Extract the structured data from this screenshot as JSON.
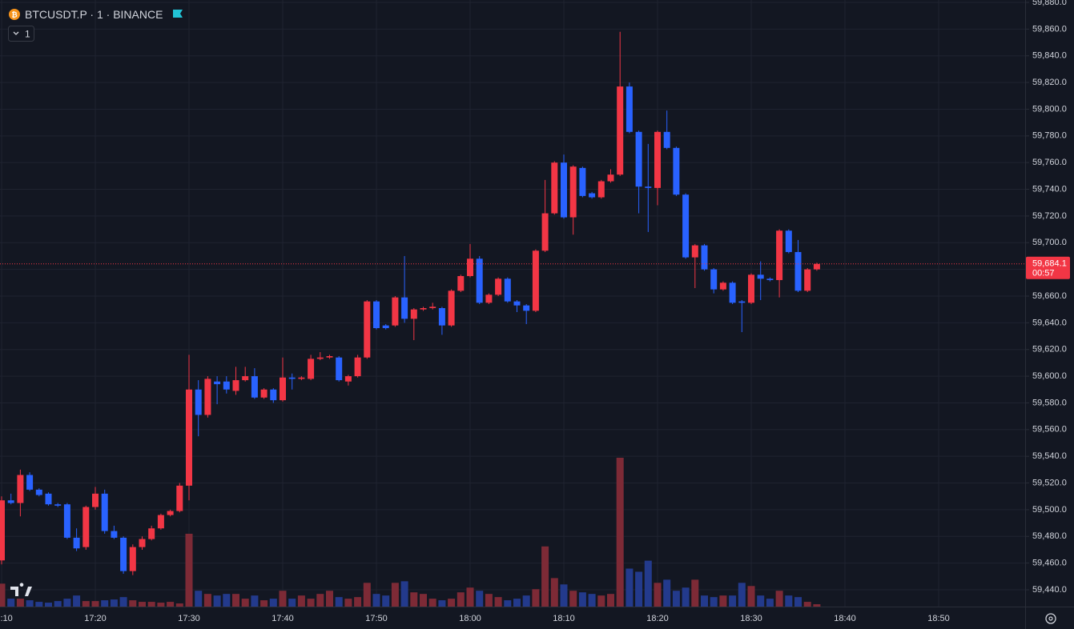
{
  "chart_data": {
    "type": "candlestick",
    "title": "BTCUSDT.P · 1 · BINANCE",
    "interval_badge": "1",
    "x": [
      "17:10",
      "17:11",
      "17:12",
      "17:13",
      "17:14",
      "17:15",
      "17:16",
      "17:17",
      "17:18",
      "17:19",
      "17:20",
      "17:21",
      "17:22",
      "17:23",
      "17:24",
      "17:25",
      "17:26",
      "17:27",
      "17:28",
      "17:29",
      "17:30",
      "17:31",
      "17:32",
      "17:33",
      "17:34",
      "17:35",
      "17:36",
      "17:37",
      "17:38",
      "17:39",
      "17:40",
      "17:41",
      "17:42",
      "17:43",
      "17:44",
      "17:45",
      "17:46",
      "17:47",
      "17:48",
      "17:49",
      "17:50",
      "17:51",
      "17:52",
      "17:53",
      "17:54",
      "17:55",
      "17:56",
      "17:57",
      "17:58",
      "17:59",
      "18:00",
      "18:01",
      "18:02",
      "18:03",
      "18:04",
      "18:05",
      "18:06",
      "18:07",
      "18:08",
      "18:09",
      "18:10",
      "18:11",
      "18:12",
      "18:13",
      "18:14",
      "18:15",
      "18:16",
      "18:17",
      "18:18",
      "18:19",
      "18:20",
      "18:21",
      "18:22",
      "18:23",
      "18:24",
      "18:25",
      "18:26",
      "18:27",
      "18:28",
      "18:29",
      "18:30",
      "18:31",
      "18:32",
      "18:33",
      "18:34",
      "18:35",
      "18:36",
      "18:37"
    ],
    "open": [
      59462,
      59507,
      59505,
      59526,
      59515,
      59512,
      59504,
      59504,
      59479,
      59472,
      59502,
      59512,
      59484,
      59479,
      59454,
      59472,
      59478,
      59486,
      59496,
      59499,
      59518,
      59590,
      59571,
      59596,
      59596,
      59589,
      59597,
      59600,
      59584,
      59590,
      59582,
      59599,
      59598,
      59598,
      59613,
      59614,
      59614,
      59596,
      59600,
      59614,
      59656,
      59638,
      59638,
      59659,
      59643,
      59650,
      59651,
      59651,
      59638,
      59664,
      59675,
      59688,
      59655,
      59661,
      59673,
      59656,
      59653,
      59649,
      59694,
      59722,
      59760,
      59719,
      59756,
      59737,
      59734,
      59746,
      59751,
      59817,
      59783,
      59742,
      59741,
      59783,
      59771,
      59736,
      59689,
      59698,
      59680,
      59665,
      59670,
      59656,
      59655,
      59676,
      59673,
      59672,
      59709,
      59693,
      59664,
      59680
    ],
    "high": [
      59510,
      59512,
      59530,
      59528,
      59516,
      59513,
      59505,
      59505,
      59486,
      59503,
      59517,
      59515,
      59488,
      59480,
      59474,
      59480,
      59488,
      59497,
      59500,
      59520,
      59616,
      59597,
      59600,
      59600,
      59600,
      59607,
      59607,
      59606,
      59591,
      59591,
      59614,
      59602,
      59600,
      59616,
      59618,
      59616,
      59615,
      59601,
      59616,
      59657,
      59657,
      59639,
      59660,
      59690,
      59651,
      59652,
      59655,
      59652,
      59665,
      59676,
      59699,
      59690,
      59662,
      59674,
      59674,
      59657,
      59654,
      59695,
      59747,
      59761,
      59766,
      59758,
      59757,
      59738,
      59747,
      59755,
      59858,
      59820,
      59784,
      59774,
      59784,
      59799,
      59772,
      59737,
      59699,
      59699,
      59681,
      59671,
      59671,
      59657,
      59677,
      59686,
      59674,
      59710,
      59710,
      59702,
      59681,
      59685
    ],
    "low": [
      59459,
      59504,
      59495,
      59514,
      59510,
      59503,
      59502,
      59478,
      59469,
      59470,
      59500,
      59482,
      59478,
      59452,
      59451,
      59470,
      59477,
      59485,
      59495,
      59498,
      59507,
      59555,
      59569,
      59579,
      59587,
      59586,
      59596,
      59583,
      59583,
      59580,
      59581,
      59590,
      59597,
      59597,
      59612,
      59613,
      59596,
      59593,
      59599,
      59613,
      59635,
      59635,
      59637,
      59640,
      59627,
      59649,
      59650,
      59631,
      59637,
      59663,
      59674,
      59654,
      59654,
      59660,
      59655,
      59648,
      59639,
      59648,
      59693,
      59721,
      59718,
      59706,
      59734,
      59733,
      59733,
      59745,
      59750,
      59782,
      59722,
      59708,
      59728,
      59770,
      59735,
      59688,
      59666,
      59679,
      59662,
      59664,
      59654,
      59633,
      59654,
      59657,
      59671,
      59659,
      59692,
      59663,
      59663,
      59679
    ],
    "close": [
      59507,
      59505,
      59526,
      59515,
      59511,
      59504,
      59503,
      59479,
      59471,
      59502,
      59512,
      59484,
      59479,
      59454,
      59472,
      59478,
      59486,
      59496,
      59499,
      59518,
      59590,
      59571,
      59598,
      59594,
      59590,
      59597,
      59600,
      59584,
      59590,
      59582,
      59599,
      59598,
      59599,
      59613,
      59614,
      59615,
      59597,
      59600,
      59614,
      59656,
      59636,
      59636,
      59659,
      59643,
      59650,
      59651,
      59652,
      59638,
      59664,
      59675,
      59688,
      59655,
      59661,
      59673,
      59656,
      59653,
      59649,
      59694,
      59722,
      59760,
      59719,
      59757,
      59735,
      59734,
      59746,
      59751,
      59817,
      59783,
      59742,
      59741,
      59783,
      59771,
      59736,
      59689,
      59698,
      59680,
      59665,
      59670,
      59655,
      59655,
      59676,
      59673,
      59672,
      59709,
      59693,
      59664,
      59680,
      59684.1
    ],
    "volume": [
      29,
      10,
      10,
      8,
      6,
      5,
      7,
      10,
      14,
      7,
      7,
      8,
      9,
      12,
      8,
      6,
      6,
      5,
      6,
      4,
      92,
      20,
      16,
      14,
      16,
      16,
      10,
      14,
      8,
      10,
      20,
      10,
      14,
      10,
      16,
      20,
      12,
      10,
      12,
      30,
      16,
      14,
      30,
      32,
      18,
      16,
      10,
      8,
      10,
      18,
      24,
      20,
      16,
      12,
      8,
      10,
      14,
      22,
      76,
      36,
      28,
      20,
      18,
      16,
      14,
      16,
      188,
      48,
      44,
      58,
      30,
      34,
      20,
      24,
      34,
      14,
      12,
      14,
      14,
      30,
      26,
      14,
      10,
      20,
      14,
      12,
      6,
      3
    ],
    "ylim": [
      59427.4,
      59881.8
    ],
    "yticks": [
      {
        "value": 59440,
        "label": "59,440.0"
      },
      {
        "value": 59460,
        "label": "59,460.0"
      },
      {
        "value": 59480,
        "label": "59,480.0"
      },
      {
        "value": 59500,
        "label": "59,500.0"
      },
      {
        "value": 59520,
        "label": "59,520.0"
      },
      {
        "value": 59540,
        "label": "59,540.0"
      },
      {
        "value": 59560,
        "label": "59,560.0"
      },
      {
        "value": 59580,
        "label": "59,580.0"
      },
      {
        "value": 59600,
        "label": "59,600.0"
      },
      {
        "value": 59620,
        "label": "59,620.0"
      },
      {
        "value": 59640,
        "label": "59,640.0"
      },
      {
        "value": 59660,
        "label": "59,660.0"
      },
      {
        "value": 59680,
        "label": "59,680.0"
      },
      {
        "value": 59700,
        "label": "59,700.0"
      },
      {
        "value": 59720,
        "label": "59,720.0"
      },
      {
        "value": 59740,
        "label": "59,740.0"
      },
      {
        "value": 59760,
        "label": "59,760.0"
      },
      {
        "value": 59780,
        "label": "59,780.0"
      },
      {
        "value": 59800,
        "label": "59,800.0"
      },
      {
        "value": 59820,
        "label": "59,820.0"
      },
      {
        "value": 59840,
        "label": "59,840.0"
      },
      {
        "value": 59860,
        "label": "59,860.0"
      },
      {
        "value": 59880,
        "label": "59,880.0"
      }
    ],
    "xticks": [
      "17:10",
      "17:20",
      "17:30",
      "17:40",
      "17:50",
      "18:00",
      "18:10",
      "18:20",
      "18:30",
      "18:40",
      "18:50"
    ],
    "last_price": {
      "value": 59684.1,
      "label": "59,684.1",
      "countdown": "00:57"
    },
    "up_color": "#f23645",
    "down_color": "#2962ff",
    "up_volume_color": "#7d2a36",
    "down_volume_color": "#233a8c",
    "grid": true
  }
}
